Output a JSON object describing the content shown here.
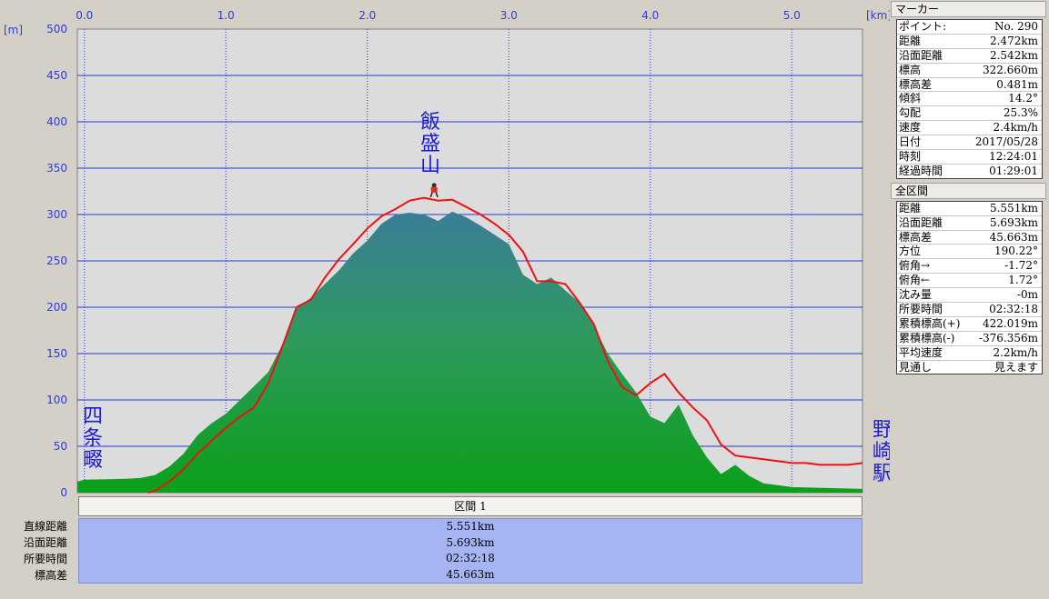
{
  "chart_data": {
    "type": "area",
    "x_unit": "[km]",
    "y_unit": "[m]",
    "xlim": [
      -0.05,
      5.5
    ],
    "ylim": [
      0,
      500
    ],
    "x_ticks": [
      "0.0",
      "1.0",
      "2.0",
      "3.0",
      "4.0",
      "5.0"
    ],
    "y_ticks": [
      "0",
      "50",
      "100",
      "150",
      "200",
      "250",
      "300",
      "350",
      "400",
      "450",
      "500"
    ],
    "grid": true,
    "series": [
      {
        "type": "area",
        "x": [
          -0.05,
          0.0,
          0.3,
          0.4,
          0.5,
          0.6,
          0.7,
          0.8,
          0.9,
          1.0,
          1.1,
          1.2,
          1.3,
          1.4,
          1.5,
          1.6,
          1.7,
          1.8,
          1.9,
          2.0,
          2.1,
          2.2,
          2.3,
          2.4,
          2.5,
          2.6,
          2.7,
          2.8,
          2.9,
          3.0,
          3.1,
          3.2,
          3.3,
          3.4,
          3.5,
          3.6,
          3.7,
          3.8,
          3.9,
          4.0,
          4.1,
          4.2,
          4.3,
          4.4,
          4.5,
          4.6,
          4.7,
          4.8,
          4.9,
          5.0,
          5.5
        ],
        "y": [
          12,
          14,
          15,
          16,
          19,
          28,
          42,
          62,
          75,
          85,
          100,
          115,
          130,
          160,
          198,
          210,
          225,
          240,
          258,
          272,
          290,
          300,
          302,
          300,
          293,
          303,
          297,
          288,
          278,
          268,
          235,
          225,
          232,
          218,
          205,
          180,
          150,
          128,
          108,
          82,
          75,
          95,
          62,
          38,
          20,
          30,
          18,
          10,
          8,
          6,
          4
        ]
      },
      {
        "type": "line",
        "color": "#ee1111",
        "x": [
          0.45,
          0.5,
          0.6,
          0.7,
          0.8,
          0.9,
          1.0,
          1.1,
          1.2,
          1.3,
          1.4,
          1.5,
          1.6,
          1.7,
          1.8,
          1.9,
          2.0,
          2.1,
          2.2,
          2.3,
          2.4,
          2.5,
          2.6,
          2.7,
          2.8,
          2.9,
          3.0,
          3.1,
          3.2,
          3.3,
          3.4,
          3.5,
          3.6,
          3.7,
          3.8,
          3.9,
          4.0,
          4.1,
          4.2,
          4.3,
          4.4,
          4.5,
          4.6,
          4.7,
          4.8,
          4.9,
          5.0,
          5.1,
          5.2,
          5.3,
          5.4,
          5.5
        ],
        "y": [
          0,
          2,
          12,
          25,
          42,
          56,
          70,
          82,
          92,
          118,
          158,
          200,
          208,
          232,
          252,
          268,
          285,
          298,
          306,
          315,
          318,
          315,
          316,
          308,
          300,
          290,
          278,
          260,
          228,
          228,
          225,
          205,
          182,
          142,
          114,
          105,
          118,
          128,
          108,
          92,
          78,
          52,
          40,
          38,
          36,
          34,
          32,
          32,
          30,
          30,
          30,
          32
        ]
      }
    ],
    "marker_x": 2.472,
    "marker_y": 322.66
  },
  "labels": {
    "start": [
      "四",
      "条",
      "畷"
    ],
    "peak": [
      "飯",
      "盛",
      "山"
    ],
    "end": [
      "野",
      "崎",
      "駅"
    ]
  },
  "section": {
    "header": "区間 1",
    "rows": [
      {
        "label": "直線距離",
        "value": "5.551km"
      },
      {
        "label": "沿面距離",
        "value": "5.693km"
      },
      {
        "label": "所要時間",
        "value": "02:32:18"
      },
      {
        "label": "標高差",
        "value": "45.663m"
      }
    ]
  },
  "panel": {
    "marker_title": "マーカー",
    "marker_rows": [
      {
        "k": "ポイント:",
        "v": "No. 290"
      },
      {
        "k": "距離",
        "v": "2.472km"
      },
      {
        "k": "沿面距離",
        "v": "2.542km"
      },
      {
        "k": "標高",
        "v": "322.660m"
      },
      {
        "k": "標高差",
        "v": "0.481m"
      },
      {
        "k": "傾斜",
        "v": "14.2°"
      },
      {
        "k": "勾配",
        "v": "25.3%"
      },
      {
        "k": "速度",
        "v": "2.4km/h"
      },
      {
        "k": "日付",
        "v": "2017/05/28"
      },
      {
        "k": "時刻",
        "v": "12:24:01"
      },
      {
        "k": "経過時間",
        "v": "01:29:01"
      }
    ],
    "total_title": "全区間",
    "total_rows": [
      {
        "k": "距離",
        "v": "5.551km"
      },
      {
        "k": "沿面距離",
        "v": "5.693km"
      },
      {
        "k": "標高差",
        "v": "45.663m"
      },
      {
        "k": "方位",
        "v": "190.22°"
      },
      {
        "k": "俯角→",
        "v": "-1.72°"
      },
      {
        "k": "俯角←",
        "v": "1.72°"
      },
      {
        "k": "沈み量",
        "v": "-0m"
      },
      {
        "k": "所要時間",
        "v": "02:32:18"
      },
      {
        "k": "累積標高(+)",
        "v": "422.019m"
      },
      {
        "k": "累積標高(-)",
        "v": "-376.356m"
      },
      {
        "k": "平均速度",
        "v": "2.2km/h"
      },
      {
        "k": "見通し",
        "v": "見えます"
      }
    ]
  }
}
